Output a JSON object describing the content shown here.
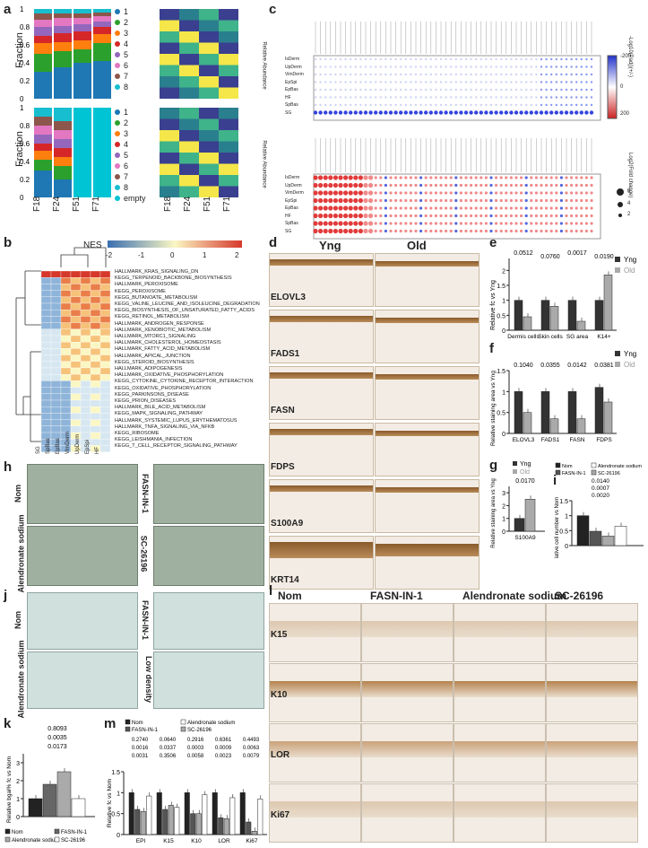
{
  "panels": {
    "a": "a",
    "b": "b",
    "c": "c",
    "d": "d",
    "e": "e",
    "f": "f",
    "g": "g",
    "h": "h",
    "i": "i",
    "j": "j",
    "k": "k",
    "l": "l",
    "m": "m"
  },
  "a": {
    "ylabel": "Fraction",
    "samples": [
      "F18",
      "F24",
      "F51",
      "F71"
    ],
    "legend_top": [
      "1",
      "2",
      "3",
      "4",
      "5",
      "6",
      "7",
      "8"
    ],
    "legend_bottom": [
      "1",
      "2",
      "3",
      "4",
      "5",
      "6",
      "7",
      "8",
      "empty"
    ],
    "heat_label": "Relative Abundance",
    "ticks": [
      "0",
      "0.2",
      "0.4",
      "0.6",
      "0.8",
      "1"
    ],
    "colors": [
      "#1f77b4",
      "#2ca02c",
      "#ff7f0e",
      "#d62728",
      "#9467bd",
      "#e377c2",
      "#8c564b",
      "#17becf",
      "#00c4d4"
    ]
  },
  "b": {
    "nes_label": "NES",
    "scale": [
      "-2",
      "-1",
      "0",
      "1",
      "2"
    ],
    "pathways": [
      "HALLMARK_KRAS_SIGNALING_DN",
      "KEGG_TERPENOID_BACKBONE_BIOSYNTHESIS",
      "HALLMARK_PEROXISOME",
      "KEGG_PEROXISOME",
      "KEGG_BUTANOATE_METABOLISM",
      "KEGG_VALINE_LEUCINE_AND_ISOLEUCINE_DEGRADATION",
      "KEGG_BIOSYNTHESIS_OF_UNSATURATED_FATTY_ACIDS",
      "KEGG_RETINOL_METABOLISM",
      "HALLMARK_ANDROGEN_RESPONSE",
      "HALLMARK_XENOBIOTIC_METABOLISM",
      "HALLMARK_MTORC1_SIGNALING",
      "HALLMARK_CHOLESTEROL_HOMEOSTASIS",
      "HALLMARK_FATTY_ACID_METABOLISM",
      "HALLMARK_APICAL_JUNCTION",
      "KEGG_STEROID_BIOSYNTHESIS",
      "HALLMARK_ADIPOGENESIS",
      "HALLMARK_OXIDATIVE_PHOSPHORYLATION",
      "KEGG_CYTOKINE_CYTOKINE_RECEPTOR_INTERACTION",
      "KEGG_OXIDATIVE_PHOSPHORYLATION",
      "KEGG_PARKINSONS_DISEASE",
      "KEGG_PRION_DISEASES",
      "HALLMARK_BILE_ACID_METABOLISM",
      "KEGG_MAPK_SIGNALING_PATHWAY",
      "HALLMARK_SYSTEMIC_LUPUS_ERYTHEMATOSUS",
      "HALLMARK_TNFA_SIGNALING_VIA_NFKB",
      "KEGG_RIBOSOME",
      "KEGG_LEISHMANIA_INFECTION",
      "KEGG_T_CELL_RECEPTOR_SIGNALING_PATHWAY"
    ],
    "columns": [
      "SG",
      "SpBas",
      "EpBas",
      "VimDerm",
      "UpDerm",
      "EpSpi",
      "HF"
    ]
  },
  "c": {
    "legend_top": "-Log10(Padj)(+/-)",
    "legend_bottom": "Log2(Fold change)",
    "scale_top": [
      "-200",
      "0",
      "200"
    ],
    "sizes": [
      "6",
      "4",
      "2"
    ],
    "rows": [
      "IsDerm",
      "UpDerm",
      "VimDerm",
      "EpSpi",
      "EpBas",
      "HF",
      "SpBas",
      "SG"
    ]
  },
  "d": {
    "headers": [
      "Yng",
      "Old"
    ],
    "stains": [
      "ELOVL3",
      "FADS1",
      "FASN",
      "FDPS",
      "S100A9",
      "KRT14"
    ]
  },
  "e": {
    "ylabel": "Relative fc vs Yng",
    "categories": [
      "Dermis cells",
      "Skin cells",
      "SG area",
      "K14+"
    ],
    "legend": [
      "Yng",
      "Old"
    ],
    "pvals": [
      "0.0512",
      "0.0760",
      "0.0017",
      "0.0190"
    ]
  },
  "f": {
    "ylabel": "Relative staining area vs Yng",
    "categories": [
      "ELOVL3",
      "FADS1",
      "FASN",
      "FDPS"
    ],
    "legend": [
      "Yng",
      "Old"
    ],
    "pvals": [
      "0.1040",
      "0.0355",
      "0.0142",
      "0.0381"
    ]
  },
  "g": {
    "ylabel": "Relative staining area vs Yng",
    "categories": [
      "S100A9"
    ],
    "legend": [
      "Yng",
      "Old"
    ],
    "pvals": [
      "0.0170"
    ]
  },
  "h": {
    "labels": [
      "Nom",
      "FASN-IN-1",
      "Alendronate sodium",
      "SC-26196"
    ]
  },
  "i": {
    "ylabel": "Relative cell number vs Nom",
    "legend": [
      "Nom",
      "Alendronate sodium",
      "FASN-IN-1",
      "SC-26196"
    ],
    "pvals": [
      "0.0140",
      "0.0007",
      "0.0020"
    ]
  },
  "j": {
    "labels": [
      "Nom",
      "FASN-IN-1",
      "Alendronate sodium",
      "Low density"
    ]
  },
  "k": {
    "ylabel": "Relative bgal% fc vs Nom",
    "pvals": [
      "0.8093",
      "0.0035",
      "0.0173"
    ],
    "legend": [
      "Nom",
      "FASN-IN-1",
      "Alendronate sodium",
      "SC-26196"
    ]
  },
  "l": {
    "headers": [
      "Nom",
      "FASN-IN-1",
      "Alendronate sodium",
      "SC-26196"
    ],
    "rows": [
      "K15",
      "K10",
      "LOR",
      "Ki67"
    ]
  },
  "m": {
    "ylabel": "Relative fc vs Nom",
    "legend": [
      "Nom",
      "Alendronate sodium",
      "FASN-IN-1",
      "SC-26196"
    ],
    "categories": [
      "EPI",
      "K15",
      "K10",
      "LOR",
      "Ki67"
    ],
    "pvals_top": [
      "0.2740",
      "0.0640",
      "0.2916",
      "0.6361",
      "0.4493"
    ],
    "pvals_mid": [
      "0.0016",
      "0.0337",
      "0.0003",
      "0.0009",
      "0.0063"
    ],
    "pvals_low": [
      "0.0031",
      "0.3506",
      "0.0058",
      "0.0023",
      "0.0079"
    ]
  },
  "chart_data": [
    {
      "panel": "e",
      "type": "bar",
      "categories": [
        "Dermis cells",
        "Skin cells",
        "SG area",
        "K14+"
      ],
      "series": [
        {
          "name": "Yng",
          "values": [
            1.0,
            1.0,
            1.0,
            1.0
          ]
        },
        {
          "name": "Old",
          "values": [
            0.45,
            0.8,
            0.3,
            1.85
          ]
        }
      ],
      "ylabel": "Relative fc vs Yng",
      "ylim": [
        0,
        2.4
      ]
    },
    {
      "panel": "f",
      "type": "bar",
      "categories": [
        "ELOVL3",
        "FADS1",
        "FASN",
        "FDPS"
      ],
      "series": [
        {
          "name": "Yng",
          "values": [
            1.0,
            1.0,
            1.0,
            1.1
          ]
        },
        {
          "name": "Old",
          "values": [
            0.5,
            0.35,
            0.35,
            0.75
          ]
        }
      ],
      "ylabel": "Relative staining area vs Yng",
      "ylim": [
        0,
        1.5
      ]
    },
    {
      "panel": "g",
      "type": "bar",
      "categories": [
        "S100A9"
      ],
      "series": [
        {
          "name": "Yng",
          "values": [
            1.0
          ]
        },
        {
          "name": "Old",
          "values": [
            2.5
          ]
        }
      ],
      "ylabel": "Relative staining area vs Yng",
      "ylim": [
        0,
        3.5
      ]
    },
    {
      "panel": "i",
      "type": "bar",
      "categories": [
        "Nom",
        "FASN-IN-1",
        "Alendronate sodium",
        "SC-26196"
      ],
      "values": [
        1.0,
        0.48,
        0.32,
        0.65
      ],
      "ylabel": "Relative cell number vs Nom",
      "ylim": [
        0,
        1.5
      ]
    },
    {
      "panel": "k",
      "type": "bar",
      "categories": [
        "Nom",
        "FASN-IN-1",
        "Alendronate sodium",
        "SC-26196"
      ],
      "values": [
        1.0,
        1.8,
        2.5,
        1.0
      ],
      "ylabel": "Relative bgal% fc vs Nom",
      "ylim": [
        0,
        3.5
      ]
    },
    {
      "panel": "m",
      "type": "bar",
      "categories": [
        "EPI",
        "K15",
        "K10",
        "LOR",
        "Ki67"
      ],
      "series": [
        {
          "name": "Nom",
          "values": [
            1.0,
            1.0,
            1.0,
            1.0,
            1.0
          ]
        },
        {
          "name": "FASN-IN-1",
          "values": [
            0.6,
            0.6,
            0.5,
            0.4,
            0.3
          ]
        },
        {
          "name": "Alendronate sodium",
          "values": [
            0.55,
            0.7,
            0.5,
            0.38,
            0.08
          ]
        },
        {
          "name": "SC-26196",
          "values": [
            0.92,
            0.65,
            0.95,
            0.88,
            0.85
          ]
        }
      ],
      "ylabel": "Relative fc vs Nom",
      "ylim": [
        0,
        1.5
      ]
    }
  ]
}
